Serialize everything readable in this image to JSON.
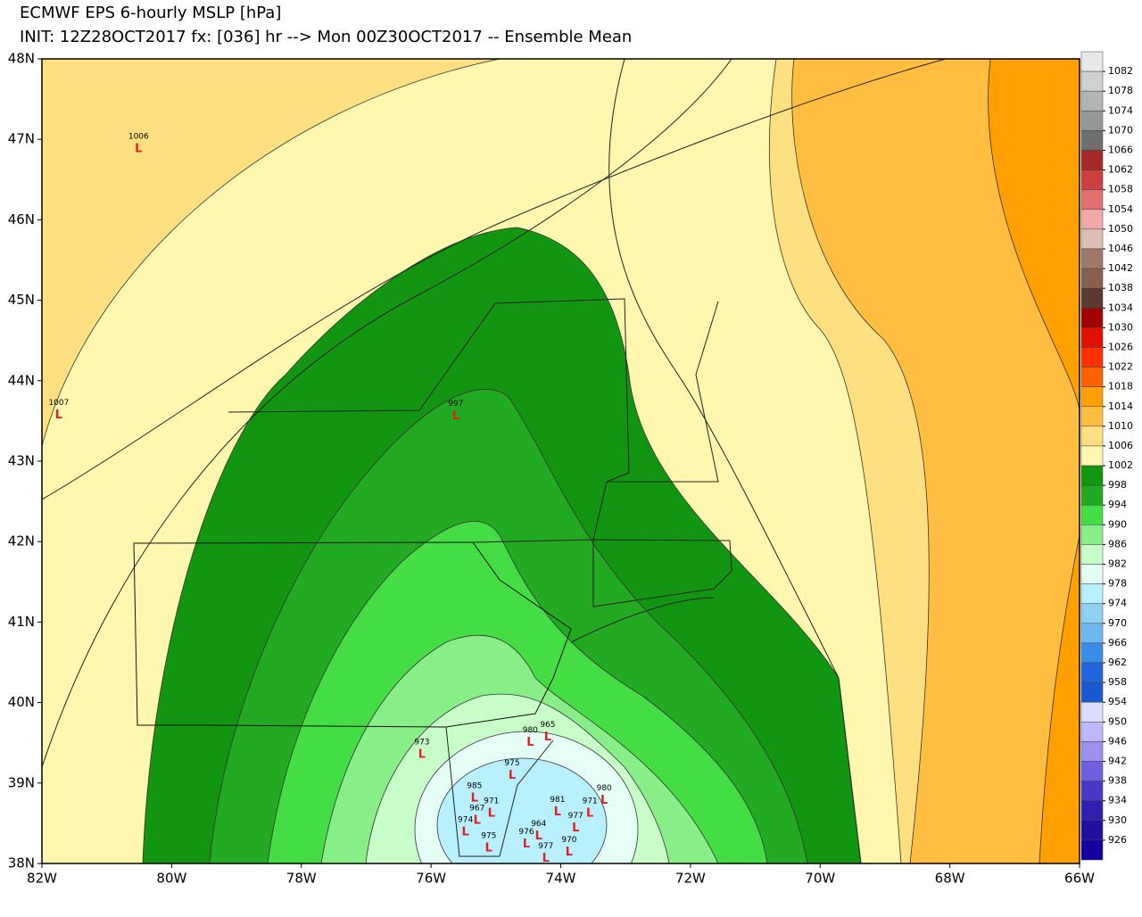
{
  "header": {
    "title": "ECMWF EPS 6-hourly MSLP [hPa]",
    "subtitle": "INIT: 12Z28OCT2017 fx: [036] hr --> Mon 00Z30OCT2017 -- Ensemble Mean"
  },
  "map": {
    "lon_lim": [
      -82,
      -66
    ],
    "lat_lim": [
      38,
      48
    ],
    "lon_ticks": [
      {
        "value": -82,
        "label": "82W"
      },
      {
        "value": -80,
        "label": "80W"
      },
      {
        "value": -78,
        "label": "78W"
      },
      {
        "value": -76,
        "label": "76W"
      },
      {
        "value": -74,
        "label": "74W"
      },
      {
        "value": -72,
        "label": "72W"
      },
      {
        "value": -70,
        "label": "70W"
      },
      {
        "value": -68,
        "label": "68W"
      },
      {
        "value": -66,
        "label": "66W"
      }
    ],
    "lat_ticks": [
      {
        "value": 48,
        "label": "48N"
      },
      {
        "value": 47,
        "label": "47N"
      },
      {
        "value": 46,
        "label": "46N"
      },
      {
        "value": 45,
        "label": "45N"
      },
      {
        "value": 44,
        "label": "44N"
      },
      {
        "value": 43,
        "label": "43N"
      },
      {
        "value": 42,
        "label": "42N"
      },
      {
        "value": 41,
        "label": "41N"
      },
      {
        "value": 40,
        "label": "40N"
      },
      {
        "value": 39,
        "label": "39N"
      },
      {
        "value": 38,
        "label": "38N"
      }
    ],
    "lows": [
      {
        "value": 1006,
        "lon": -80.51,
        "lat": 46.88
      },
      {
        "value": 1007,
        "lon": -81.74,
        "lat": 43.57
      },
      {
        "value": 997,
        "lon": -75.62,
        "lat": 43.56
      },
      {
        "value": 965,
        "lon": -74.2,
        "lat": 39.57
      },
      {
        "value": 980,
        "lon": -74.47,
        "lat": 39.5
      },
      {
        "value": 981,
        "lon": -74.05,
        "lat": 38.64
      },
      {
        "value": 980,
        "lon": -73.33,
        "lat": 38.78
      },
      {
        "value": 971,
        "lon": -73.55,
        "lat": 38.62
      },
      {
        "value": 977,
        "lon": -73.77,
        "lat": 38.44
      },
      {
        "value": 970,
        "lon": -73.87,
        "lat": 38.14
      },
      {
        "value": 964,
        "lon": -74.34,
        "lat": 38.34
      },
      {
        "value": 977,
        "lon": -74.23,
        "lat": 38.06
      },
      {
        "value": 985,
        "lon": -75.33,
        "lat": 38.81
      },
      {
        "value": 967,
        "lon": -75.29,
        "lat": 38.53
      },
      {
        "value": 975,
        "lon": -75.11,
        "lat": 38.19
      },
      {
        "value": 974,
        "lon": -75.47,
        "lat": 38.39
      },
      {
        "value": 971,
        "lon": -75.07,
        "lat": 38.62
      },
      {
        "value": 973,
        "lon": -76.14,
        "lat": 39.35
      },
      {
        "value": 975,
        "lon": -74.75,
        "lat": 39.09
      },
      {
        "value": 976,
        "lon": -74.53,
        "lat": 38.24
      }
    ]
  },
  "colorbar": {
    "levels": [
      1082,
      1078,
      1074,
      1070,
      1066,
      1062,
      1058,
      1054,
      1050,
      1046,
      1042,
      1038,
      1034,
      1030,
      1026,
      1022,
      1018,
      1014,
      1010,
      1006,
      1002,
      998,
      994,
      990,
      986,
      982,
      978,
      974,
      970,
      966,
      962,
      958,
      954,
      950,
      946,
      942,
      938,
      934,
      930,
      926
    ],
    "colors": [
      "#e8e8e8",
      "#d0d0d0",
      "#b4b4b4",
      "#969696",
      "#6e6e6e",
      "#a52a2a",
      "#cd4040",
      "#e07070",
      "#f0a8a8",
      "#dcbfb4",
      "#a0786a",
      "#8b5f50",
      "#5a3a30",
      "#a00000",
      "#e01000",
      "#ff3000",
      "#ff6000",
      "#ffa000",
      "#ffbe40",
      "#ffe080",
      "#fff7b0",
      "#129612",
      "#22aa22",
      "#44dd44",
      "#88ee88",
      "#c8ffc8",
      "#e6fff6",
      "#b8f0ff",
      "#90d0f0",
      "#70b8f0",
      "#3a8ee8",
      "#2266dd",
      "#1a5ad0",
      "#dcdcff",
      "#c0b8ff",
      "#a090ee",
      "#7060e0",
      "#4a38c8",
      "#3020b0",
      "#2010a0",
      "#1400a0"
    ]
  }
}
